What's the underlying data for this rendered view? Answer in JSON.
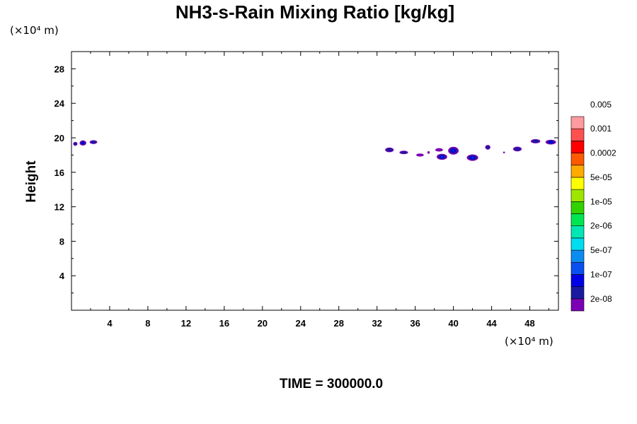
{
  "chart_data": {
    "type": "heatmap",
    "title": "NH3-s-Rain Mixing Ratio [kg/kg]",
    "ylabel": "Height",
    "x_unit": "(×10⁴ m)",
    "y_unit": "(×10⁴ m)",
    "footer": "TIME = 300000.0",
    "xlim": [
      0,
      51
    ],
    "ylim": [
      0,
      30
    ],
    "x_ticks": [
      4,
      8,
      12,
      16,
      20,
      24,
      28,
      32,
      36,
      40,
      44,
      48
    ],
    "x_tick_labels": [
      "4",
      "8",
      "12",
      "16",
      "20",
      "24",
      "28",
      "32",
      "36",
      "40",
      "44",
      "48"
    ],
    "y_ticks": [
      4,
      8,
      12,
      16,
      20,
      24,
      28
    ],
    "y_tick_labels": [
      "4",
      "8",
      "12",
      "16",
      "20",
      "24",
      "28"
    ],
    "colorbar": {
      "colors": [
        "#7b00b4",
        "#1a1aa0",
        "#0000e6",
        "#0a50f0",
        "#0a8cf0",
        "#00dcf0",
        "#00e6b4",
        "#00e650",
        "#32d200",
        "#9ee600",
        "#ffff00",
        "#ffaa00",
        "#ff5a00",
        "#ff0000",
        "#ff5050",
        "#ff9aa0"
      ],
      "labels": [
        "2e-08",
        "1e-07",
        "5e-07",
        "2e-06",
        "1e-05",
        "5e-05",
        "0.0002",
        "0.001",
        "0.005"
      ]
    },
    "blobs": [
      {
        "x": 0.4,
        "y": 19.3,
        "w": 0.45,
        "h": 0.45,
        "level": 1
      },
      {
        "x": 1.2,
        "y": 19.4,
        "w": 0.7,
        "h": 0.6,
        "level": 2
      },
      {
        "x": 2.3,
        "y": 19.5,
        "w": 0.8,
        "h": 0.45,
        "level": 1
      },
      {
        "x": 33.3,
        "y": 18.6,
        "w": 0.9,
        "h": 0.55,
        "level": 1
      },
      {
        "x": 34.8,
        "y": 18.3,
        "w": 0.9,
        "h": 0.4,
        "level": 1
      },
      {
        "x": 36.5,
        "y": 18.0,
        "w": 0.8,
        "h": 0.35,
        "level": 0
      },
      {
        "x": 37.4,
        "y": 18.3,
        "w": 0.25,
        "h": 0.3,
        "level": 0
      },
      {
        "x": 38.5,
        "y": 18.6,
        "w": 0.8,
        "h": 0.4,
        "level": 0
      },
      {
        "x": 38.8,
        "y": 17.8,
        "w": 1.1,
        "h": 0.7,
        "level": 3
      },
      {
        "x": 40.0,
        "y": 18.5,
        "w": 1.1,
        "h": 0.9,
        "level": 3
      },
      {
        "x": 42.0,
        "y": 17.7,
        "w": 1.2,
        "h": 0.75,
        "level": 3
      },
      {
        "x": 43.6,
        "y": 18.9,
        "w": 0.55,
        "h": 0.55,
        "level": 1
      },
      {
        "x": 45.3,
        "y": 18.3,
        "w": 0.2,
        "h": 0.2,
        "level": 0
      },
      {
        "x": 46.7,
        "y": 18.7,
        "w": 0.9,
        "h": 0.55,
        "level": 1
      },
      {
        "x": 48.6,
        "y": 19.6,
        "w": 1.0,
        "h": 0.5,
        "level": 1
      },
      {
        "x": 50.2,
        "y": 19.5,
        "w": 1.1,
        "h": 0.55,
        "level": 2
      }
    ]
  }
}
